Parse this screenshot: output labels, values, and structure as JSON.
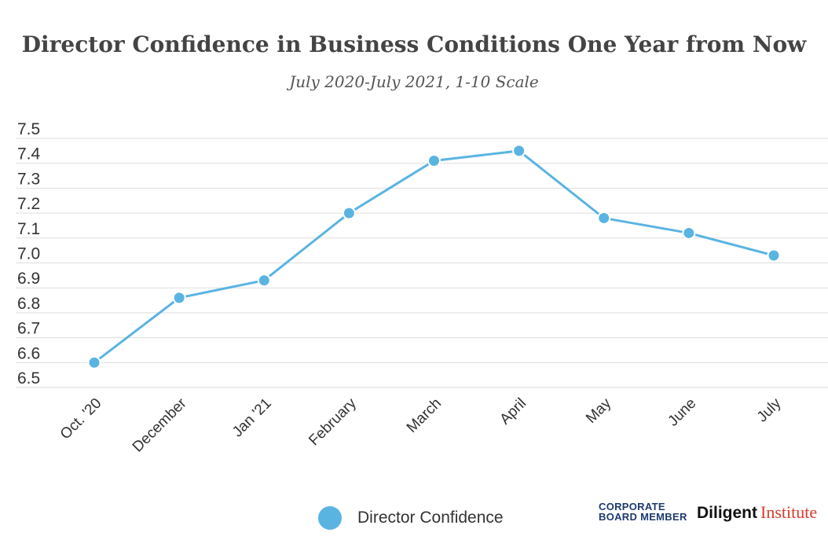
{
  "chart_data": {
    "type": "line",
    "title": "Director Confidence in Business Conditions One Year from Now",
    "subtitle": "July 2020-July 2021, 1-10 Scale",
    "categories": [
      "Oct. '20",
      "December",
      "Jan '21",
      "February",
      "March",
      "April",
      "May",
      "June",
      "July"
    ],
    "series": [
      {
        "name": "Director Confidence",
        "values": [
          6.6,
          6.86,
          6.93,
          7.2,
          7.41,
          7.45,
          7.18,
          7.12,
          7.03
        ],
        "color": "#5ab4e2"
      }
    ],
    "ylim": [
      6.5,
      7.5
    ],
    "yticks": [
      "7.5",
      "7.4",
      "7.3",
      "7.2",
      "7.1",
      "7.0",
      "6.9",
      "6.8",
      "6.7",
      "6.6",
      "6.5"
    ],
    "xlabel": "",
    "ylabel": "",
    "grid": true,
    "legend_position": "bottom-center"
  },
  "branding": {
    "cbm_line1": "CORPORATE",
    "cbm_line2": "BOARD MEMBER",
    "diligent": "Diligent",
    "institute": "Institute"
  }
}
